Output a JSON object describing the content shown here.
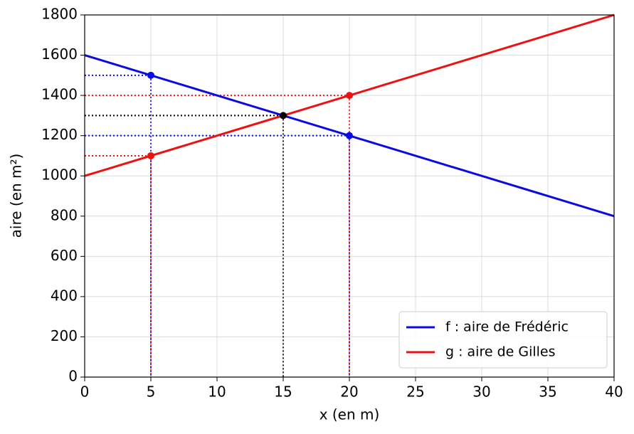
{
  "chart_data": {
    "type": "line",
    "xlabel": "x (en m)",
    "ylabel": "aire (en m²)",
    "series": [
      {
        "name": "f : aire de Frédéric",
        "color": "#0a0ae6",
        "x": [
          0,
          40
        ],
        "values": [
          1600,
          800
        ]
      },
      {
        "name": "g : aire de Gilles",
        "color": "#ee1111",
        "x": [
          0,
          40
        ],
        "values": [
          1000,
          1800
        ]
      }
    ],
    "points": [
      {
        "x": 5,
        "y": 1500,
        "color": "#0a0ae6"
      },
      {
        "x": 20,
        "y": 1200,
        "color": "#0a0ae6"
      },
      {
        "x": 5,
        "y": 1100,
        "color": "#ee1111"
      },
      {
        "x": 20,
        "y": 1400,
        "color": "#ee1111"
      },
      {
        "x": 15,
        "y": 1300,
        "color": "#000000"
      }
    ],
    "xlim": [
      0,
      40
    ],
    "xticks": [
      0,
      5,
      10,
      15,
      20,
      25,
      30,
      35,
      40
    ],
    "ylim": [
      0,
      1800
    ],
    "yticks": [
      0,
      200,
      400,
      600,
      800,
      1000,
      1200,
      1400,
      1600,
      1800
    ],
    "grid": true,
    "legend": "lower right"
  }
}
